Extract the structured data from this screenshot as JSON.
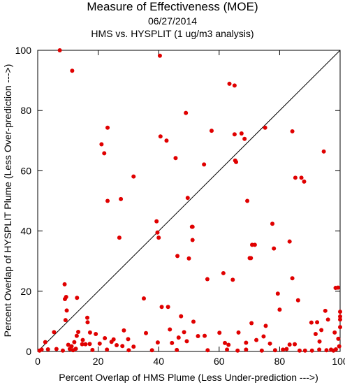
{
  "title": "Measure of Effectiveness (MOE)",
  "date": "06/27/2014",
  "subtitle": "HMS vs. HYSPLIT  (1 ug/m3 analysis)",
  "chart_data": {
    "type": "scatter",
    "xlabel": "Percent Overlap of HMS Plume (Less Under-prediction --->)",
    "ylabel": "Percent Overlap of HYSPLIT Plume (Less Over-prediction --->)",
    "xlim": [
      0,
      100
    ],
    "ylim": [
      0,
      100
    ],
    "xticks": [
      0,
      20,
      40,
      60,
      80,
      100
    ],
    "yticks": [
      0,
      20,
      40,
      60,
      80,
      100
    ],
    "grid": false,
    "reference_line": "y = x",
    "marker_color": "#e00000",
    "line_color": "#000000",
    "points": [
      [
        7.3,
        100
      ],
      [
        11.4,
        93.2
      ],
      [
        40.4,
        98.2
      ],
      [
        63.4,
        88.9
      ],
      [
        65.1,
        88.3
      ],
      [
        49.0,
        79.2
      ],
      [
        23.1,
        74.3
      ],
      [
        40.6,
        71.4
      ],
      [
        42.6,
        70.0
      ],
      [
        57.5,
        73.3
      ],
      [
        65.1,
        72.1
      ],
      [
        67.4,
        72.4
      ],
      [
        68.4,
        70.6
      ],
      [
        75.2,
        74.3
      ],
      [
        84.2,
        73.1
      ],
      [
        21.1,
        68.8
      ],
      [
        22.0,
        65.8
      ],
      [
        45.6,
        64.2
      ],
      [
        65.3,
        63.4
      ],
      [
        65.6,
        62.9
      ],
      [
        55.0,
        62.1
      ],
      [
        31.7,
        58.1
      ],
      [
        85.2,
        57.7
      ],
      [
        87.2,
        57.7
      ],
      [
        88.1,
        56.4
      ],
      [
        94.6,
        66.4
      ],
      [
        23.1,
        50.0
      ],
      [
        27.5,
        50.6
      ],
      [
        49.6,
        51.0
      ],
      [
        69.3,
        50.0
      ],
      [
        51.0,
        41.4
      ],
      [
        51.2,
        41.4
      ],
      [
        39.3,
        43.2
      ],
      [
        39.6,
        39.5
      ],
      [
        40.0,
        37.8
      ],
      [
        27.0,
        37.8
      ],
      [
        51.2,
        37.0
      ],
      [
        70.9,
        35.4
      ],
      [
        71.8,
        35.4
      ],
      [
        77.6,
        42.4
      ],
      [
        78.1,
        34.2
      ],
      [
        83.3,
        36.5
      ],
      [
        46.2,
        31.7
      ],
      [
        50.0,
        30.9
      ],
      [
        70.1,
        31.0
      ],
      [
        70.5,
        31.0
      ],
      [
        61.4,
        26.0
      ],
      [
        64.5,
        23.8
      ],
      [
        56.1,
        24.0
      ],
      [
        84.2,
        24.3
      ],
      [
        79.4,
        19.2
      ],
      [
        86.1,
        17.0
      ],
      [
        8.9,
        22.3
      ],
      [
        9.0,
        17.4
      ],
      [
        9.4,
        18.1
      ],
      [
        13.0,
        17.8
      ],
      [
        35.1,
        17.6
      ],
      [
        41.0,
        14.8
      ],
      [
        43.1,
        14.8
      ],
      [
        80.0,
        13.9
      ],
      [
        16.5,
        9.7
      ],
      [
        16.4,
        11.2
      ],
      [
        9.6,
        13.6
      ],
      [
        9.2,
        10.4
      ],
      [
        12.9,
        5.2
      ],
      [
        13.4,
        6.5
      ],
      [
        14.7,
        2.4
      ],
      [
        15.8,
        2.4
      ],
      [
        17.2,
        2.5
      ],
      [
        19.2,
        5.8
      ],
      [
        10.1,
        2.2
      ],
      [
        11.2,
        1.7
      ],
      [
        12.1,
        3.1
      ],
      [
        12.6,
        0.9
      ],
      [
        14.9,
        3.8
      ],
      [
        17.3,
        6.3
      ],
      [
        20.5,
        2.6
      ],
      [
        22.2,
        4.4
      ],
      [
        24.4,
        3.2
      ],
      [
        25.1,
        4.0
      ],
      [
        26.1,
        2.1
      ],
      [
        28.5,
        7.0
      ],
      [
        28.0,
        1.8
      ],
      [
        29.9,
        4.1
      ],
      [
        31.7,
        1.6
      ],
      [
        35.8,
        6.1
      ],
      [
        39.7,
        3.0
      ],
      [
        43.7,
        7.3
      ],
      [
        44.4,
        2.8
      ],
      [
        46.6,
        4.6
      ],
      [
        47.4,
        11.7
      ],
      [
        48.4,
        6.4
      ],
      [
        49.3,
        3.4
      ],
      [
        51.5,
        9.9
      ],
      [
        53.0,
        5.1
      ],
      [
        55.2,
        5.2
      ],
      [
        60.1,
        6.2
      ],
      [
        61.9,
        2.8
      ],
      [
        63.1,
        2.2
      ],
      [
        66.4,
        6.3
      ],
      [
        68.9,
        2.9
      ],
      [
        70.7,
        9.4
      ],
      [
        72.3,
        3.8
      ],
      [
        74.7,
        5.0
      ],
      [
        75.4,
        8.5
      ],
      [
        76.8,
        2.6
      ],
      [
        82.3,
        0.8
      ],
      [
        83.3,
        2.3
      ],
      [
        85.0,
        2.4
      ],
      [
        88.4,
        0.3
      ],
      [
        90.5,
        9.6
      ],
      [
        91.9,
        5.8
      ],
      [
        92.4,
        9.7
      ],
      [
        93.8,
        7.1
      ],
      [
        93.2,
        3.3
      ],
      [
        95.1,
        13.5
      ],
      [
        96.0,
        10.6
      ],
      [
        97.0,
        0.6
      ],
      [
        98.2,
        6.3
      ],
      [
        98.5,
        21.1
      ],
      [
        99.3,
        21.2
      ],
      [
        100,
        13.2
      ],
      [
        100,
        11.6
      ],
      [
        100,
        10.6
      ],
      [
        100,
        8.1
      ],
      [
        99.4,
        4.2
      ],
      [
        99.7,
        1.7
      ],
      [
        0.6,
        0.3
      ],
      [
        1.3,
        0.6
      ],
      [
        2.5,
        3.1
      ],
      [
        3.4,
        0.7
      ],
      [
        5.4,
        6.4
      ],
      [
        6.2,
        0.8
      ],
      [
        8.3,
        0.3
      ],
      [
        10.6,
        0.8
      ],
      [
        11.7,
        0.4
      ],
      [
        18.1,
        0.5
      ],
      [
        22.9,
        0.6
      ],
      [
        30.1,
        0.4
      ],
      [
        37.8,
        0.4
      ],
      [
        46.0,
        0.5
      ],
      [
        56.2,
        0.4
      ],
      [
        62.6,
        0.6
      ],
      [
        66.1,
        0.3
      ],
      [
        68.9,
        0.6
      ],
      [
        74.1,
        0.3
      ],
      [
        78.5,
        0.4
      ],
      [
        81.1,
        0.6
      ],
      [
        86.6,
        0.3
      ],
      [
        90.7,
        0.3
      ],
      [
        93.1,
        0.6
      ],
      [
        95.5,
        0.4
      ],
      [
        97.8,
        0.3
      ],
      [
        98.6,
        0.7
      ]
    ]
  }
}
